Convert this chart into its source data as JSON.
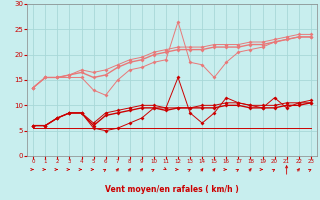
{
  "xlabel": "Vent moyen/en rafales ( km/h )",
  "background_color": "#c8eeee",
  "grid_color": "#a8d8d8",
  "x": [
    0,
    1,
    2,
    3,
    4,
    5,
    6,
    7,
    8,
    9,
    10,
    11,
    12,
    13,
    14,
    15,
    16,
    17,
    18,
    19,
    20,
    21,
    22,
    23
  ],
  "line1_y": [
    13.5,
    15.5,
    15.5,
    15.5,
    15.5,
    13.0,
    12.0,
    15.0,
    17.0,
    17.5,
    18.5,
    19.0,
    26.5,
    18.5,
    18.0,
    15.5,
    18.5,
    20.5,
    21.0,
    21.5,
    22.5,
    23.0,
    23.5,
    23.5
  ],
  "line2_y": [
    13.5,
    15.5,
    15.5,
    16.0,
    16.5,
    15.5,
    16.0,
    17.5,
    18.5,
    19.0,
    20.0,
    20.5,
    21.0,
    21.0,
    21.0,
    21.5,
    21.5,
    21.5,
    22.0,
    22.0,
    22.5,
    23.0,
    23.5,
    23.5
  ],
  "line3_y": [
    13.5,
    15.5,
    15.5,
    16.0,
    17.0,
    16.5,
    17.0,
    18.0,
    19.0,
    19.5,
    20.5,
    21.0,
    21.5,
    21.5,
    21.5,
    22.0,
    22.0,
    22.0,
    22.5,
    22.5,
    23.0,
    23.5,
    24.0,
    24.0
  ],
  "line4_y": [
    6.0,
    6.0,
    7.5,
    8.5,
    8.5,
    5.5,
    5.0,
    5.5,
    6.5,
    7.5,
    9.5,
    9.5,
    15.5,
    8.5,
    6.5,
    8.5,
    11.5,
    10.5,
    10.0,
    9.5,
    11.5,
    9.5,
    10.5,
    10.5
  ],
  "line5_y": [
    6.0,
    6.0,
    7.5,
    8.5,
    8.5,
    6.0,
    8.0,
    8.5,
    9.0,
    9.5,
    9.5,
    9.0,
    9.5,
    9.5,
    9.5,
    9.5,
    10.0,
    10.0,
    9.5,
    9.5,
    9.5,
    10.0,
    10.0,
    10.5
  ],
  "line6_y": [
    6.0,
    6.0,
    7.5,
    8.5,
    8.5,
    6.5,
    8.5,
    9.0,
    9.5,
    10.0,
    10.0,
    9.5,
    9.5,
    9.5,
    10.0,
    10.0,
    10.5,
    10.5,
    10.0,
    10.0,
    10.0,
    10.5,
    10.5,
    11.0
  ],
  "line7_y": [
    5.5,
    5.5,
    5.5,
    5.5,
    5.5,
    5.5,
    5.5,
    5.5,
    5.5,
    5.5,
    5.5,
    5.5,
    5.5,
    5.5,
    5.5,
    5.5,
    5.5,
    5.5,
    5.5,
    5.5,
    5.5,
    5.5,
    5.5,
    5.5
  ],
  "arrow_angles": [
    0,
    0,
    0,
    0,
    0,
    0,
    15,
    30,
    30,
    30,
    15,
    -15,
    0,
    15,
    30,
    30,
    0,
    15,
    30,
    0,
    15,
    90,
    30,
    15
  ],
  "ylim": [
    0,
    30
  ],
  "yticks": [
    0,
    5,
    10,
    15,
    20,
    25,
    30
  ],
  "color_light": "#e87878",
  "color_dark": "#cc0000"
}
